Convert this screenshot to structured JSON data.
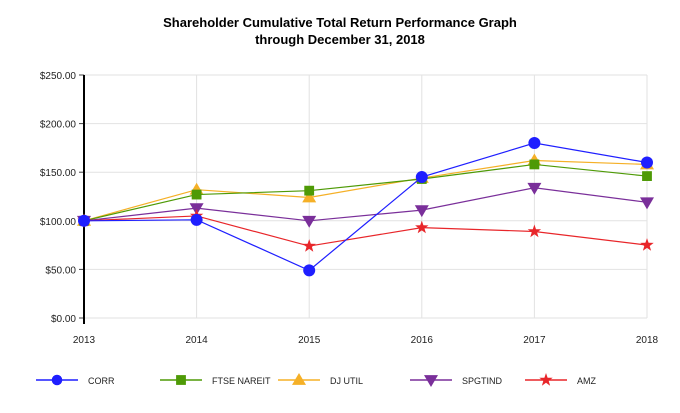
{
  "chart_data": {
    "type": "line",
    "title": "Shareholder Cumulative Total Return Performance Graph",
    "subtitle": "through December 31, 2018",
    "xlabel": "",
    "ylabel": "",
    "categories": [
      "2013",
      "2014",
      "2015",
      "2016",
      "2017",
      "2018"
    ],
    "ylim": [
      0,
      250
    ],
    "yticks": [
      "$0.00",
      "$50.00",
      "$100.00",
      "$150.00",
      "$200.00",
      "$250.00"
    ],
    "grid": true,
    "legend": "bottom",
    "series": [
      {
        "name": "CORR",
        "color": "#1f1fff",
        "marker": "circle",
        "values": [
          100,
          101,
          49,
          145,
          180,
          160
        ]
      },
      {
        "name": "FTSE NAREIT",
        "color": "#4e9a06",
        "marker": "square",
        "values": [
          100,
          127,
          131,
          143,
          158,
          146
        ]
      },
      {
        "name": "DJ UTIL",
        "color": "#f5b027",
        "marker": "triangle-up",
        "values": [
          100,
          132,
          124,
          144,
          162,
          158
        ]
      },
      {
        "name": "SPGTIND",
        "color": "#7a2f9a",
        "marker": "triangle-down",
        "values": [
          100,
          113,
          100,
          111,
          134,
          119
        ]
      },
      {
        "name": "AMZ",
        "color": "#e8262a",
        "marker": "star",
        "values": [
          100,
          105,
          74,
          93,
          89,
          75
        ]
      }
    ]
  }
}
